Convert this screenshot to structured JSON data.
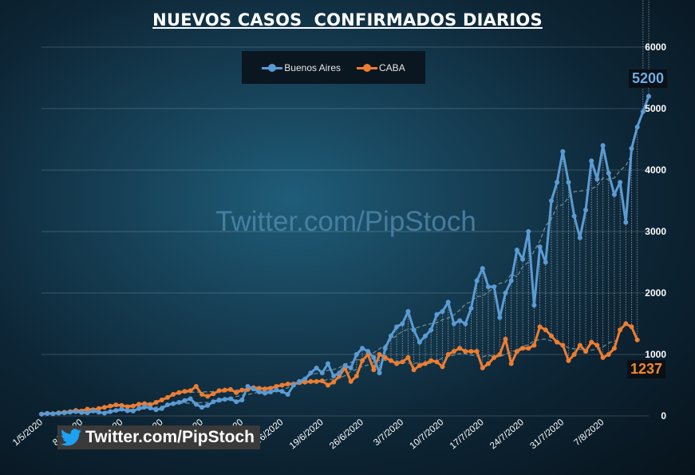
{
  "title": "NUEVOS CASOS  CONFIRMADOS DIARIOS",
  "watermark": "Twitter.com/PipStoch",
  "twitter_badge": "Twitter.com/PipStoch",
  "colors": {
    "buenos_aires": "#5b9bd5",
    "caba": "#ed7d31",
    "trend": "#6a8a96"
  },
  "chart_data": {
    "type": "line",
    "title": "NUEVOS CASOS  CONFIRMADOS DIARIOS",
    "ylim": [
      0,
      6000
    ],
    "y_ticks": [
      0,
      1000,
      2000,
      3000,
      4000,
      5000,
      6000
    ],
    "y_axis_position": "right",
    "x_tick_labels": [
      "1/5/2020",
      "8/5/2020",
      "15/5/2020",
      "22/5/2020",
      "29/5/2020",
      "5/6/2020",
      "12/6/2020",
      "19/6/2020",
      "26/6/2020",
      "3/7/2020",
      "10/7/2020",
      "17/7/2020",
      "24/7/2020",
      "31/7/2020",
      "7/8/2020"
    ],
    "x_start": "1/5/2020",
    "x_end": "9/8/2020",
    "grid": true,
    "legend_position": "top-center",
    "series": [
      {
        "name": "Buenos Aires",
        "values": [
          30,
          40,
          35,
          45,
          50,
          60,
          70,
          55,
          50,
          80,
          60,
          45,
          70,
          90,
          110,
          85,
          80,
          120,
          150,
          130,
          100,
          120,
          180,
          200,
          220,
          250,
          280,
          190,
          140,
          170,
          230,
          260,
          270,
          280,
          230,
          260,
          480,
          440,
          390,
          370,
          390,
          420,
          400,
          350,
          500,
          560,
          600,
          700,
          780,
          700,
          850,
          650,
          700,
          820,
          780,
          1000,
          1100,
          1050,
          950,
          700,
          1100,
          1300,
          1450,
          1500,
          1700,
          1400,
          1200,
          1300,
          1400,
          1650,
          1700,
          1850,
          1500,
          1550,
          1500,
          1750,
          2200,
          2400,
          2100,
          2100,
          1600,
          2000,
          2200,
          2700,
          2550,
          3000,
          1800,
          2750,
          2500,
          3500,
          3800,
          4300,
          3800,
          3250,
          2900,
          3350,
          4150,
          3850,
          4400,
          3950,
          3600,
          3800,
          3150,
          4350,
          4700,
          4950,
          5200
        ]
      },
      {
        "name": "CABA",
        "values": [
          30,
          40,
          35,
          50,
          60,
          70,
          90,
          80,
          110,
          100,
          120,
          140,
          160,
          180,
          170,
          150,
          160,
          190,
          200,
          180,
          220,
          260,
          300,
          350,
          380,
          400,
          410,
          480,
          350,
          320,
          360,
          410,
          420,
          430,
          380,
          420,
          430,
          460,
          450,
          440,
          450,
          480,
          500,
          520,
          520,
          540,
          550,
          560,
          560,
          570,
          500,
          550,
          650,
          780,
          560,
          650,
          900,
          1000,
          750,
          1000,
          950,
          900,
          850,
          880,
          950,
          750,
          820,
          850,
          900,
          880,
          800,
          1000,
          1050,
          1100,
          1050,
          1050,
          1050,
          780,
          850,
          950,
          1000,
          1250,
          850,
          1050,
          1100,
          1100,
          1150,
          1450,
          1400,
          1300,
          1200,
          1150,
          900,
          1000,
          1150,
          1050,
          1200,
          1150,
          950,
          1000,
          1100,
          1400,
          1500,
          1450,
          1237
        ]
      }
    ],
    "annotations": [
      {
        "series": "Buenos Aires",
        "text": "5200"
      },
      {
        "series": "CABA",
        "text": "1237"
      }
    ]
  }
}
